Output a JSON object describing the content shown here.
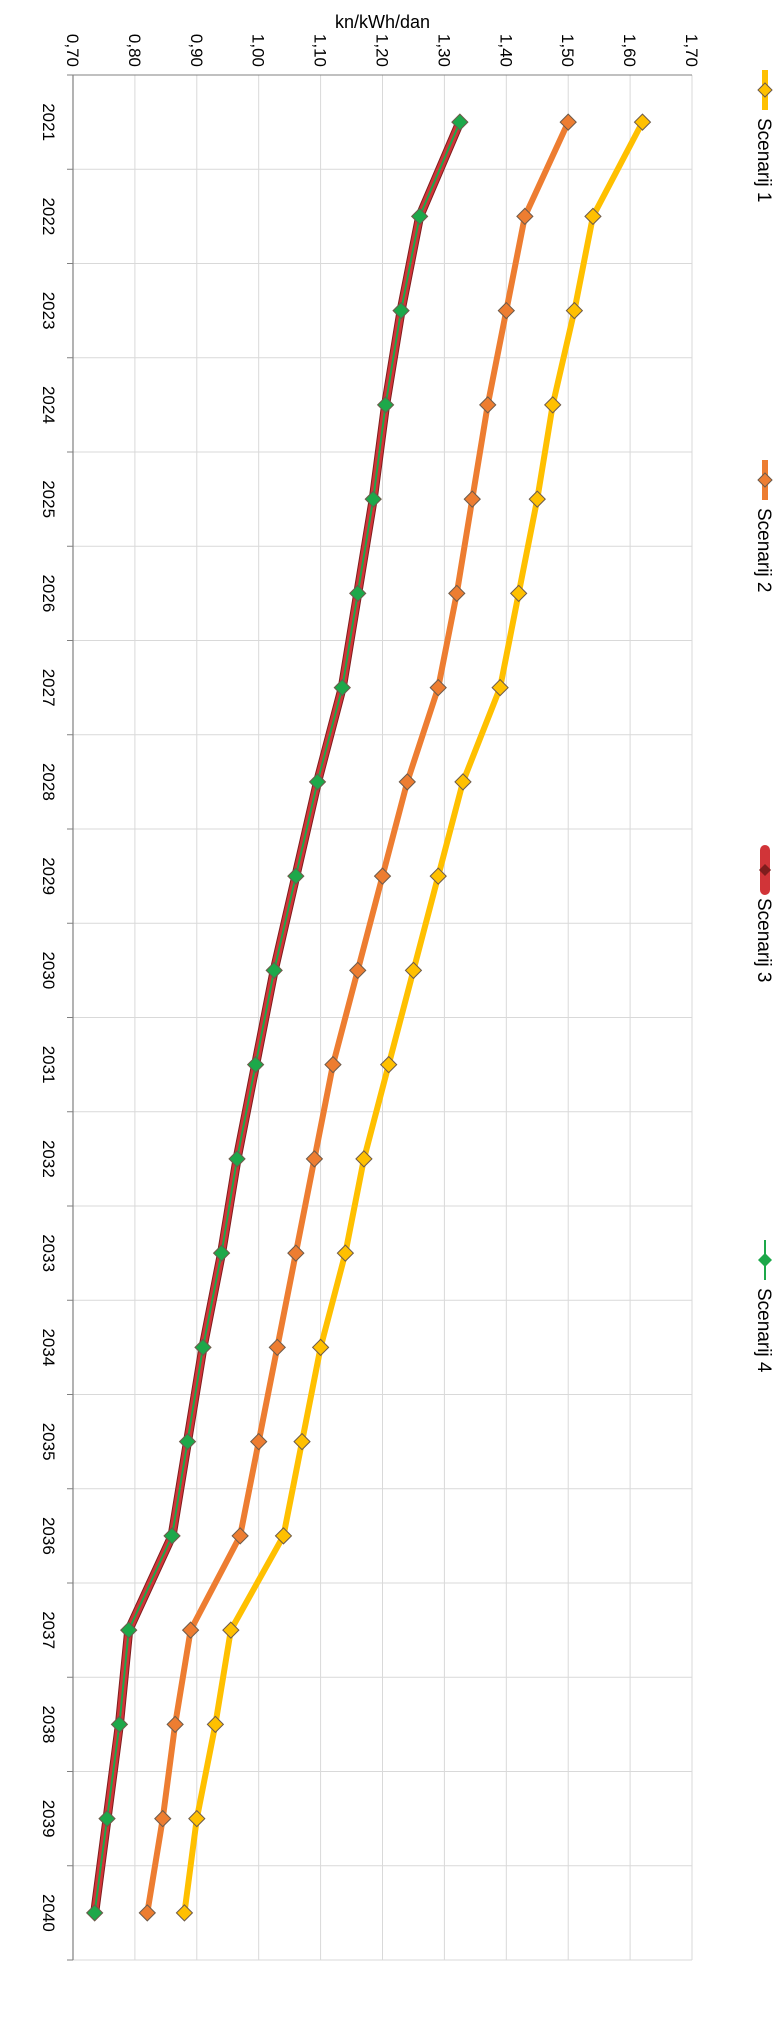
{
  "chart_data": {
    "type": "line",
    "title": "",
    "xlabel": "",
    "ylabel": "kn/kWh/dan",
    "x": [
      2021,
      2022,
      2023,
      2024,
      2025,
      2026,
      2027,
      2028,
      2029,
      2030,
      2031,
      2032,
      2033,
      2034,
      2035,
      2036,
      2037,
      2038,
      2039,
      2040
    ],
    "x_tick_labels": [
      "2021",
      "2022",
      "2023",
      "2024",
      "2025",
      "2026",
      "2027",
      "2028",
      "2029",
      "2030",
      "2031",
      "2032",
      "2033",
      "2034",
      "2035",
      "2036",
      "2037",
      "2038",
      "2039",
      "2040"
    ],
    "ylim": [
      0.7,
      1.7
    ],
    "y_ticks": [
      0.7,
      0.8,
      0.9,
      1.0,
      1.1,
      1.2,
      1.3,
      1.4,
      1.5,
      1.6,
      1.7
    ],
    "y_tick_labels": [
      "0,70",
      "0,80",
      "0,90",
      "1,00",
      "1,10",
      "1,20",
      "1,30",
      "1,40",
      "1,50",
      "1,60",
      "1,70"
    ],
    "grid": true,
    "orientation": "rotated 90° clockwise",
    "legend_position": "top",
    "series": [
      {
        "name": "Scenarij 1",
        "color": "#FFC000",
        "marker": "diamond",
        "values": [
          1.62,
          1.54,
          1.51,
          1.475,
          1.45,
          1.42,
          1.39,
          1.33,
          1.29,
          1.25,
          1.21,
          1.17,
          1.14,
          1.1,
          1.07,
          1.04,
          0.955,
          0.93,
          0.9,
          0.88
        ]
      },
      {
        "name": "Scenarij 2",
        "color": "#ED7D31",
        "marker": "diamond",
        "values": [
          1.5,
          1.43,
          1.4,
          1.37,
          1.345,
          1.32,
          1.29,
          1.24,
          1.2,
          1.16,
          1.12,
          1.09,
          1.06,
          1.03,
          1.0,
          0.97,
          0.89,
          0.865,
          0.845,
          0.82
        ]
      },
      {
        "name": "Scenarij 3",
        "color": "#D13438",
        "marker": "circle",
        "values": [
          1.325,
          1.26,
          1.23,
          1.205,
          1.185,
          1.16,
          1.135,
          1.095,
          1.06,
          1.025,
          0.995,
          0.965,
          0.94,
          0.91,
          0.885,
          0.86,
          0.79,
          0.775,
          0.755,
          0.735
        ]
      },
      {
        "name": "Scenarij 4",
        "color": "#1DA84A",
        "marker": "diamond",
        "values": [
          1.325,
          1.26,
          1.23,
          1.205,
          1.185,
          1.16,
          1.135,
          1.095,
          1.06,
          1.025,
          0.995,
          0.965,
          0.94,
          0.91,
          0.885,
          0.86,
          0.79,
          0.775,
          0.755,
          0.735
        ]
      }
    ]
  }
}
